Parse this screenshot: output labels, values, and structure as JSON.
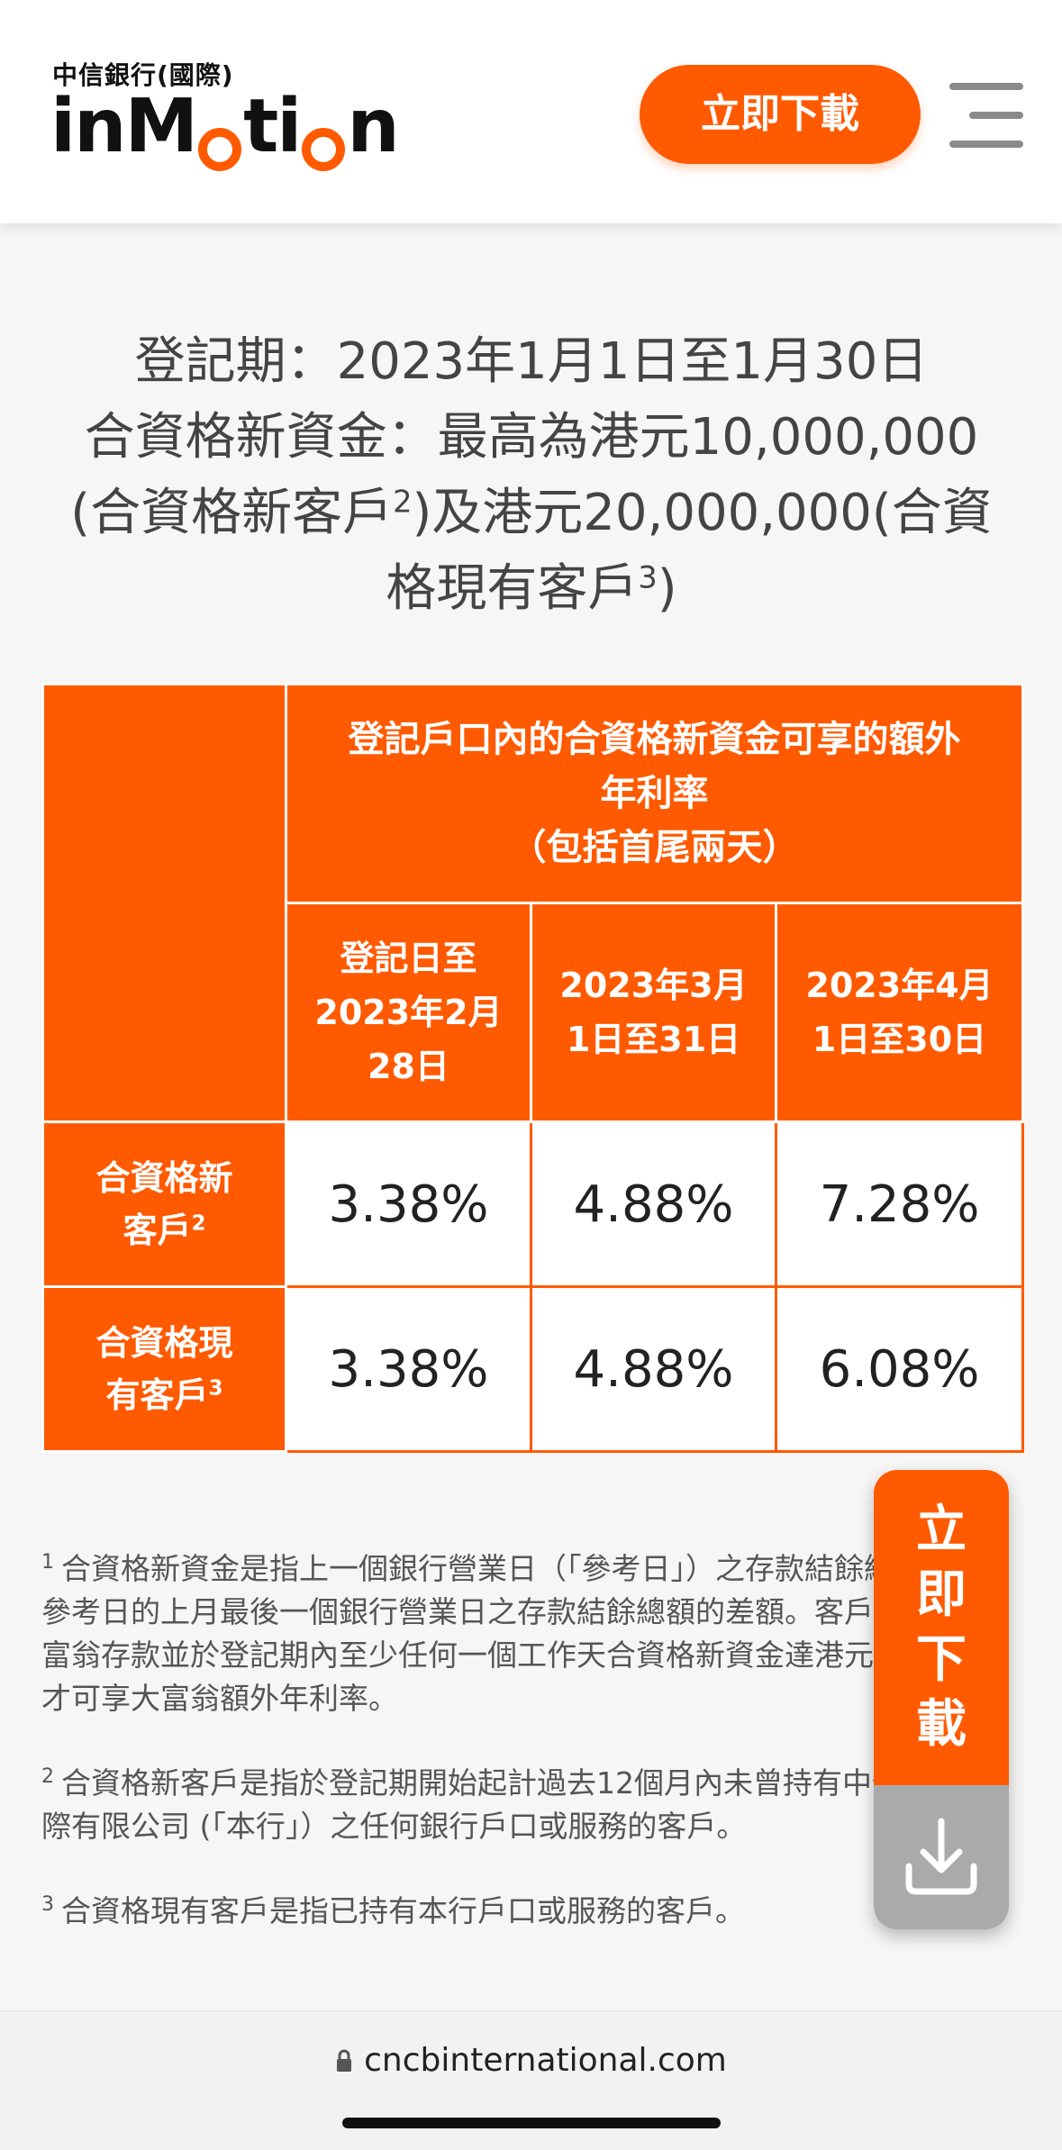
{
  "header": {
    "brand_cn": "中信銀行(國際)",
    "brand_logo_parts": [
      "in",
      "M",
      "ti",
      "n"
    ],
    "download_label": "立即下載",
    "accent_color": "#ff5a00"
  },
  "intro": {
    "line1": "登記期：2023年1月1日至1月30日",
    "line2": "合資格新資金：最高為港元10,000,000",
    "line3_a": "(合資格新客戶",
    "line3_sup": "2",
    "line3_b": ")及港元20,000,000(合資",
    "line4_a": "格現有客戶",
    "line4_sup": "3",
    "line4_b": ")"
  },
  "table": {
    "header_main_l1": "登記戶口內的合資格新資金可享的額外",
    "header_main_l2": "年利率",
    "header_main_l3": "（包括首尾兩天）",
    "periods": [
      {
        "l1": "登記日至",
        "l2": "2023年2月",
        "l3": "28日"
      },
      {
        "l1": "2023年3月",
        "l2": "1日至31日"
      },
      {
        "l1": "2023年4月",
        "l2": "1日至30日"
      }
    ],
    "rows": [
      {
        "label_l1": "合資格新",
        "label_l2": "客戶",
        "sup": "2",
        "values": [
          "3.38%",
          "4.88%",
          "7.28%"
        ]
      },
      {
        "label_l1": "合資格現",
        "label_l2": "有客戶",
        "sup": "3",
        "values": [
          "3.38%",
          "4.88%",
          "6.08%"
        ]
      }
    ]
  },
  "notes": [
    {
      "num": "1",
      "text": "合資格新資金是指上一個銀行營業日（「參考日」）之存款結餘總額減去參考日的上月最後一個銀行營業日之存款結餘總額的差額。客戶需登記大富翁存款並於登記期內至少任何一個工作天合資格新資金達港元10,000才可享大富翁額外年利率。"
    },
    {
      "num": "2",
      "text": "合資格新客戶是指於登記期開始起計過去12個月內未曾持有中信銀行國際有限公司 (「本行」）之任何銀行戶口或服務的客戶。"
    },
    {
      "num": "3",
      "text": "合資格現有客戶是指已持有本行戶口或服務的客戶。"
    }
  ],
  "float_download": {
    "chars": [
      "立",
      "即",
      "下",
      "載"
    ],
    "icon": "download-icon"
  },
  "browser": {
    "url": "cncbinternational.com",
    "icon": "lock-icon"
  }
}
